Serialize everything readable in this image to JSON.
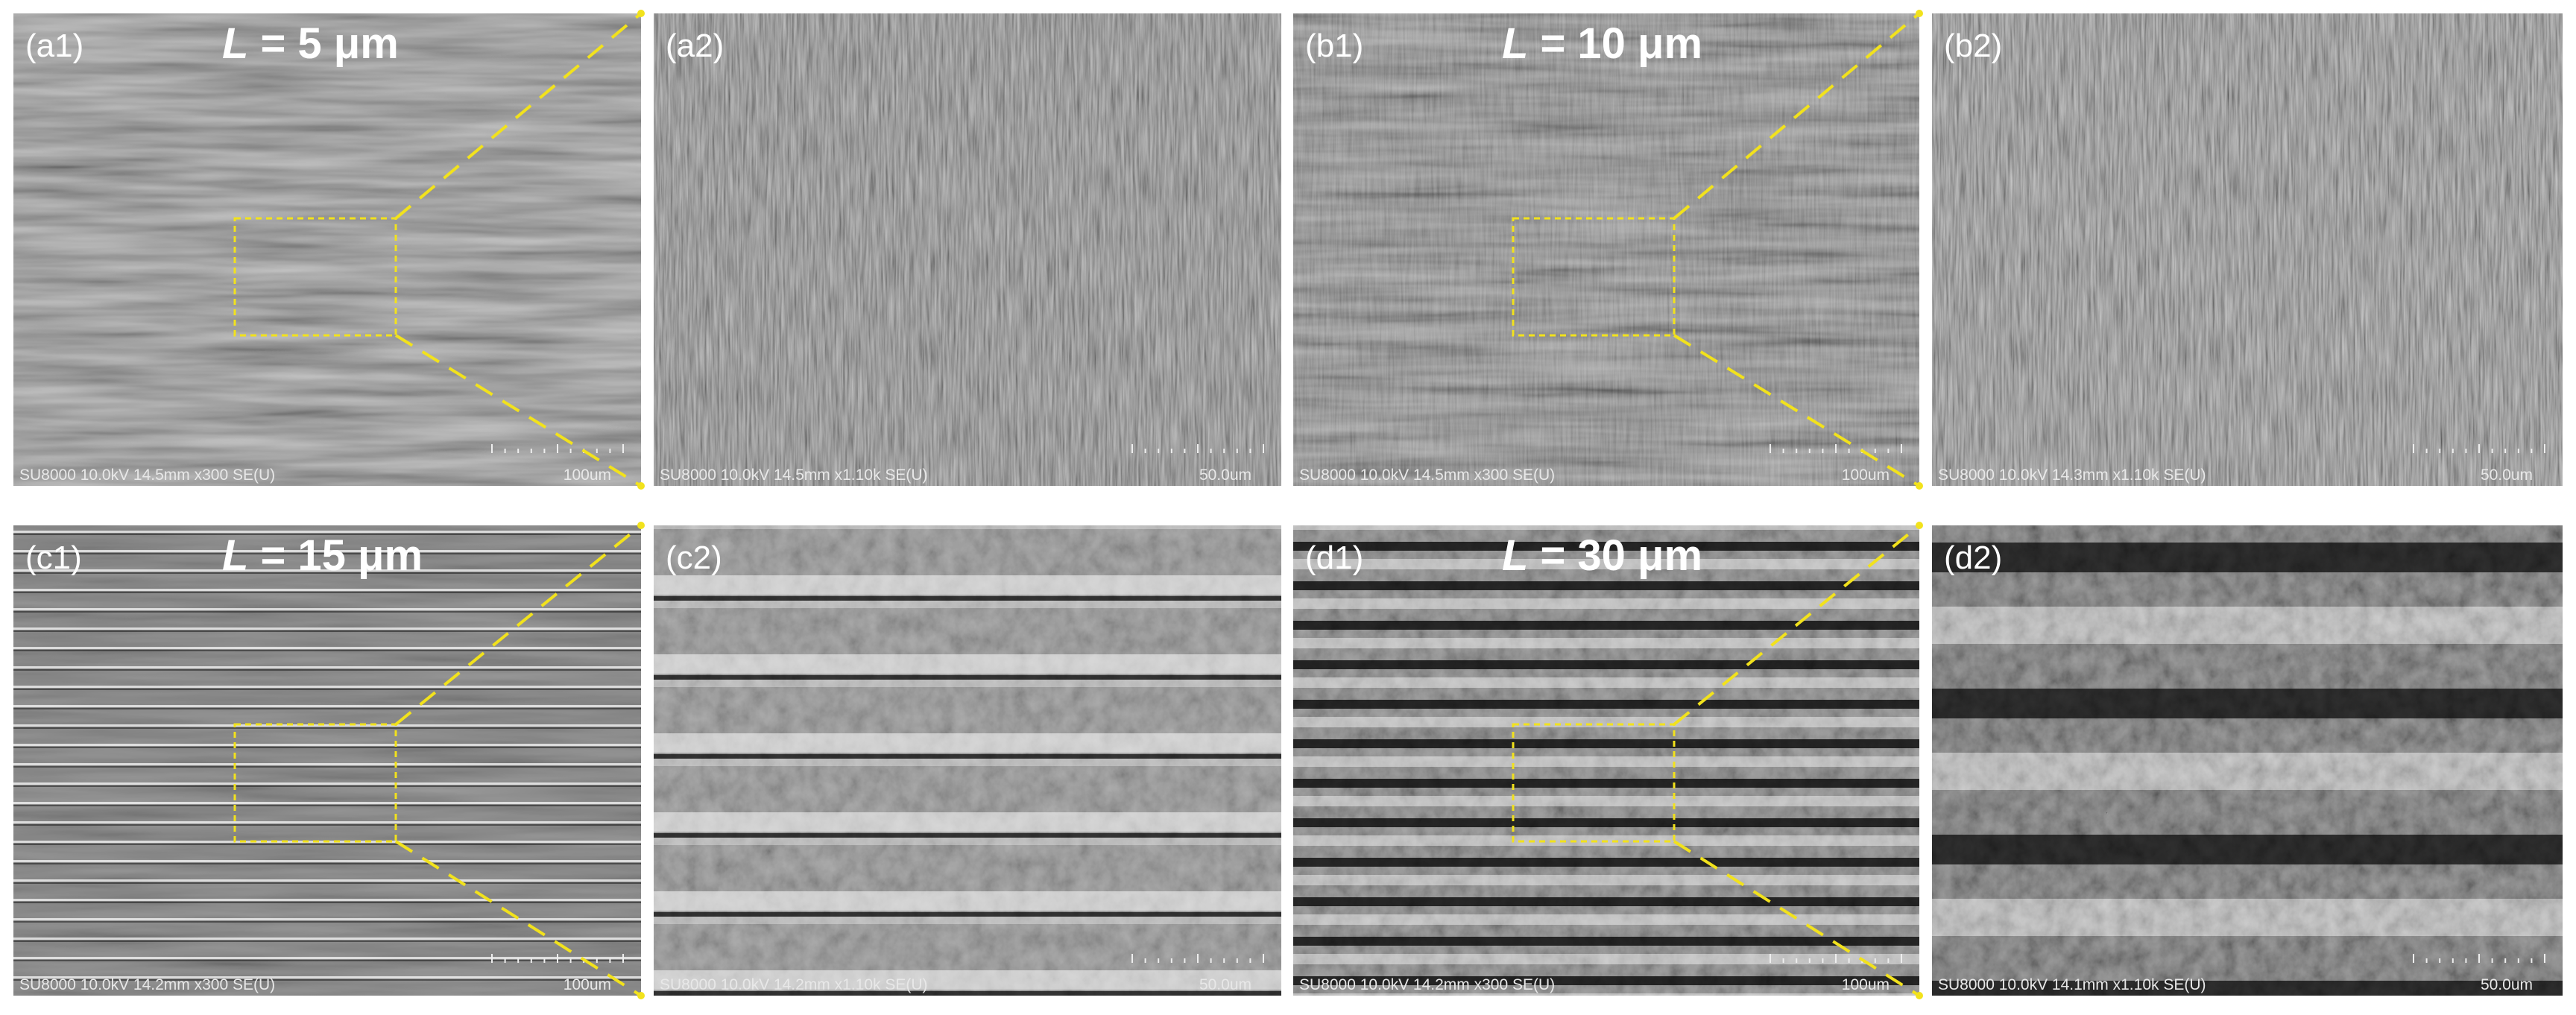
{
  "panels": [
    {
      "label": "(a1)",
      "length_symbol": "L",
      "length_text": "= 5 μm",
      "info": "SU8000 10.0kV 14.5mm x300 SE(U)",
      "scale": "100um"
    },
    {
      "label": "(a2)",
      "info": "SU8000 10.0kV 14.5mm x1.10k SE(U)",
      "scale": "50.0um"
    },
    {
      "label": "(b1)",
      "length_symbol": "L",
      "length_text": "= 10 μm",
      "info": "SU8000 10.0kV 14.5mm x300 SE(U)",
      "scale": "100um"
    },
    {
      "label": "(b2)",
      "info": "SU8000 10.0kV 14.3mm x1.10k SE(U)",
      "scale": "50.0um"
    },
    {
      "label": "(c1)",
      "length_symbol": "L",
      "length_text": "= 15 μm",
      "info": "SU8000 10.0kV 14.2mm x300 SE(U)",
      "scale": "100um"
    },
    {
      "label": "(c2)",
      "info": "SU8000 10.0kV 14.2mm x1.10k SE(U)",
      "scale": "50.0um"
    },
    {
      "label": "(d1)",
      "length_symbol": "L",
      "length_text": "= 30 μm",
      "info": "SU8000 10.0kV 14.2mm x300 SE(U)",
      "scale": "100um"
    },
    {
      "label": "(d2)",
      "info": "SU8000 10.0kV 14.1mm x1.10k SE(U)",
      "scale": "50.0um"
    }
  ]
}
